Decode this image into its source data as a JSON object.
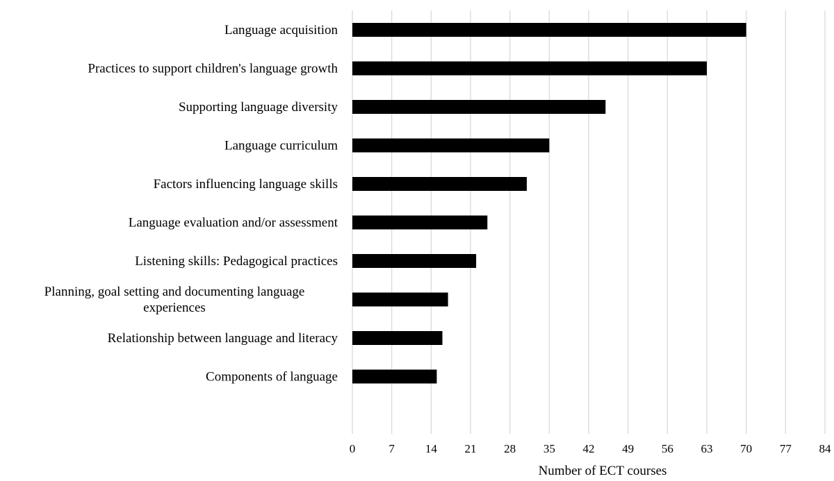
{
  "chart_data": {
    "type": "bar",
    "orientation": "horizontal",
    "title": "",
    "xlabel": "Number of ECT courses",
    "ylabel": "",
    "xlim": [
      0,
      84
    ],
    "x_ticks": [
      0,
      7,
      14,
      21,
      28,
      35,
      42,
      49,
      56,
      63,
      70,
      77,
      84
    ],
    "grid": true,
    "legend": "none",
    "bar_color": "#000000",
    "grid_color": "#d9d9d9",
    "categories": [
      [
        "Language acquisition"
      ],
      [
        "Practices to support children's language growth"
      ],
      [
        "Supporting language diversity"
      ],
      [
        "Language curriculum"
      ],
      [
        "Factors influencing language skills"
      ],
      [
        "Language evaluation and/or assessment"
      ],
      [
        "Listening skills: Pedagogical practices"
      ],
      [
        "Planning, goal setting and documenting language",
        "experiences"
      ],
      [
        "Relationship between language and literacy"
      ],
      [
        "Components of language"
      ]
    ],
    "values": [
      70,
      63,
      45,
      35,
      31,
      24,
      22,
      17,
      16,
      15
    ]
  }
}
